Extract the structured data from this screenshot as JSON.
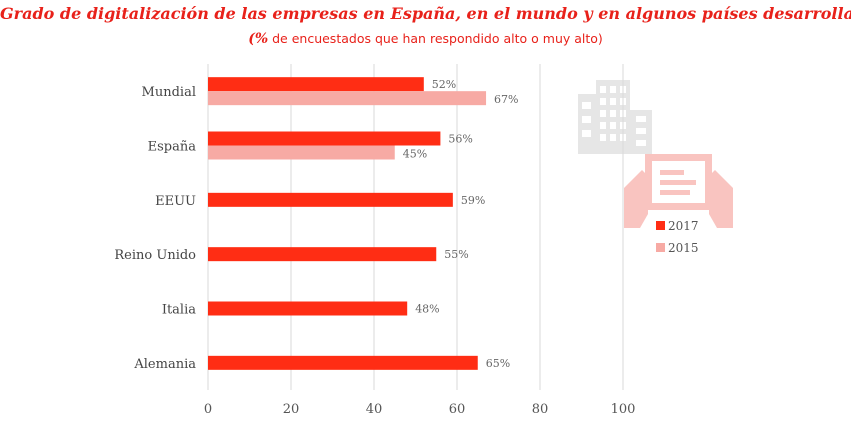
{
  "header": {
    "title": "Grado de digitalización de las empresas en España, en el mundo y en algunos países desarrollados.",
    "subtitle_pct": "(%",
    "subtitle_rest": " de encuestados que han respondido alto o muy alto)"
  },
  "colors": {
    "series_2017": "#ff2d14",
    "series_2015": "#f7aaa4",
    "title": "#e8211a",
    "grid": "#d9d9d9",
    "building_icon": "#e6e6e6",
    "tablet_icon": "#f9c4c0"
  },
  "icons": [
    "building-icon",
    "tablet-hands-icon"
  ],
  "chart_data": {
    "type": "bar",
    "orientation": "horizontal",
    "title": "Grado de digitalización de las empresas en España, en el mundo y en algunos países desarrollados.",
    "subtitle": "(% de encuestados que han respondido alto o muy alto)",
    "categories": [
      "Mundial",
      "España",
      "EEUU",
      "Reino Unido",
      "Italia",
      "Alemania"
    ],
    "series": [
      {
        "name": "2017",
        "values": [
          52,
          56,
          59,
          55,
          48,
          65
        ],
        "labels": [
          "52%",
          "56%",
          "59%",
          "55%",
          "48%",
          "65%"
        ]
      },
      {
        "name": "2015",
        "values": [
          67,
          45,
          null,
          null,
          null,
          null
        ],
        "labels": [
          "67%",
          "45%",
          "",
          "",
          "",
          ""
        ]
      }
    ],
    "xlim": [
      0,
      100
    ],
    "xticks": [
      0,
      20,
      40,
      60,
      80,
      100
    ],
    "xtick_labels": [
      "0",
      "20",
      "40",
      "60",
      "80",
      "100"
    ],
    "grid": "vertical",
    "legend": {
      "position": "right",
      "entries": [
        "2017",
        "2015"
      ]
    }
  }
}
